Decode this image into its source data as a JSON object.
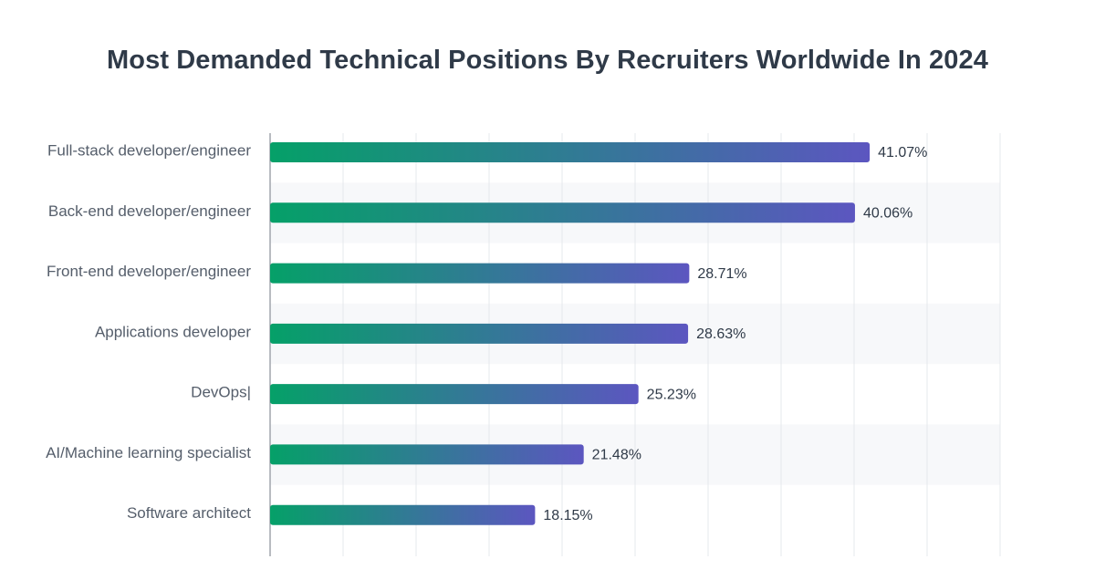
{
  "chart_data": {
    "type": "bar",
    "orientation": "horizontal",
    "title": "Most Demanded Technical Positions By Recruiters Worldwide In 2024",
    "categories": [
      "Full-stack developer/engineer",
      "Back-end developer/engineer",
      "Front-end developer/engineer",
      "Applications developer",
      "DevOps|",
      "AI/Machine learning specialist",
      "Software architect"
    ],
    "values": [
      41.07,
      40.06,
      28.71,
      28.63,
      25.23,
      21.48,
      18.15
    ],
    "value_labels": [
      "41.07%",
      "40.06%",
      "28.71%",
      "28.63%",
      "25.23%",
      "21.48%",
      "18.15%"
    ],
    "unit": "%",
    "xlim": [
      0,
      50
    ],
    "grid": true,
    "legend": "none",
    "xlabel": "",
    "ylabel": ""
  },
  "colors": {
    "bar_start": "#05a068",
    "bar_end": "#5c56c0",
    "title": "#2f3a48",
    "stripe": "#f7f8fa",
    "grid": "#e6e8ec",
    "axis": "#8a8f98"
  }
}
